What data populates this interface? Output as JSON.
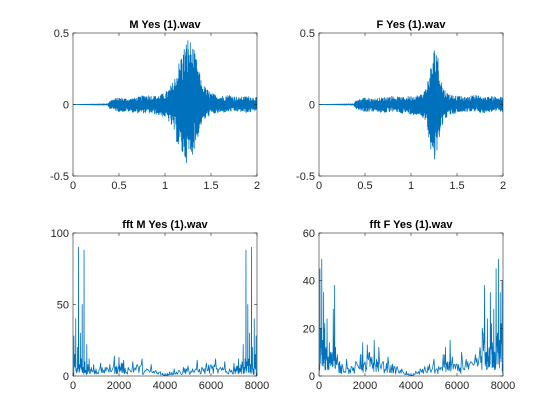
{
  "figure": {
    "background": "#ffffff"
  },
  "chart_data": [
    {
      "type": "line",
      "title": "M Yes (1).wav",
      "xlabel": "",
      "ylabel": "",
      "xlim": [
        0,
        2
      ],
      "ylim": [
        -0.5,
        0.5
      ],
      "xticks": [
        0,
        0.5,
        1,
        1.5,
        2
      ],
      "xtick_labels": [
        "0",
        "0.5",
        "1",
        "1.5",
        "2"
      ],
      "yticks": [
        -0.5,
        0,
        0.5
      ],
      "ytick_labels": [
        "-0.5",
        "0",
        "0.5"
      ],
      "color": "#0072BD",
      "grid": false,
      "envelope": {
        "x": [
          0,
          0.38,
          0.4,
          0.5,
          0.6,
          0.7,
          0.8,
          0.9,
          1.0,
          1.05,
          1.1,
          1.15,
          1.2,
          1.25,
          1.3,
          1.35,
          1.4,
          1.5,
          1.6,
          1.7,
          1.8,
          1.9,
          2.0
        ],
        "upper": [
          0.0,
          0.005,
          0.03,
          0.05,
          0.04,
          0.05,
          0.07,
          0.06,
          0.08,
          0.12,
          0.18,
          0.3,
          0.4,
          0.48,
          0.42,
          0.3,
          0.15,
          0.08,
          0.06,
          0.07,
          0.05,
          0.06,
          0.05
        ],
        "lower": [
          0.0,
          -0.005,
          -0.03,
          -0.05,
          -0.05,
          -0.06,
          -0.06,
          -0.07,
          -0.09,
          -0.13,
          -0.2,
          -0.32,
          -0.38,
          -0.42,
          -0.35,
          -0.25,
          -0.13,
          -0.07,
          -0.06,
          -0.05,
          -0.05,
          -0.06,
          -0.04
        ]
      }
    },
    {
      "type": "line",
      "title": "F Yes (1).wav",
      "xlabel": "",
      "ylabel": "",
      "xlim": [
        0,
        2
      ],
      "ylim": [
        -0.5,
        0.5
      ],
      "xticks": [
        0,
        0.5,
        1,
        1.5,
        2
      ],
      "xtick_labels": [
        "0",
        "0.5",
        "1",
        "1.5",
        "2"
      ],
      "yticks": [
        -0.5,
        0,
        0.5
      ],
      "ytick_labels": [
        "-0.5",
        "0",
        "0.5"
      ],
      "color": "#0072BD",
      "grid": false,
      "envelope": {
        "x": [
          0,
          0.38,
          0.4,
          0.5,
          0.6,
          0.7,
          0.8,
          0.9,
          1.0,
          1.1,
          1.15,
          1.2,
          1.25,
          1.28,
          1.3,
          1.35,
          1.4,
          1.5,
          1.6,
          1.7,
          1.8,
          1.9,
          2.0
        ],
        "upper": [
          0.0,
          0.005,
          0.03,
          0.05,
          0.04,
          0.05,
          0.06,
          0.05,
          0.06,
          0.07,
          0.1,
          0.22,
          0.4,
          0.43,
          0.3,
          0.12,
          0.08,
          0.06,
          0.05,
          0.07,
          0.05,
          0.06,
          0.05
        ],
        "lower": [
          0.0,
          -0.005,
          -0.03,
          -0.05,
          -0.05,
          -0.06,
          -0.05,
          -0.06,
          -0.07,
          -0.08,
          -0.1,
          -0.25,
          -0.45,
          -0.4,
          -0.25,
          -0.12,
          -0.08,
          -0.06,
          -0.05,
          -0.05,
          -0.06,
          -0.05,
          -0.05
        ]
      }
    },
    {
      "type": "line",
      "title": "fft M Yes (1).wav",
      "xlabel": "",
      "ylabel": "",
      "xlim": [
        0,
        8000
      ],
      "ylim": [
        0,
        100
      ],
      "xticks": [
        0,
        2000,
        4000,
        6000,
        8000
      ],
      "xtick_labels": [
        "0",
        "2000",
        "4000",
        "6000",
        "8000"
      ],
      "yticks": [
        0,
        50,
        100
      ],
      "ytick_labels": [
        "0",
        "50",
        "100"
      ],
      "color": "#0072BD",
      "grid": false,
      "x": [
        0,
        40,
        80,
        120,
        160,
        200,
        240,
        280,
        320,
        360,
        400,
        440,
        480,
        520,
        560,
        600,
        650,
        700,
        800,
        900,
        1000,
        1200,
        1400,
        1600,
        1800,
        1900,
        2000,
        2100,
        2200,
        2400,
        2600,
        2800,
        3000,
        3200,
        3400,
        3600,
        3800,
        3900,
        4000,
        4100,
        4200,
        4400,
        4600,
        4800,
        5000,
        5200,
        5400,
        5600,
        5800,
        6000,
        6200,
        6400,
        6600,
        6800,
        7000,
        7100,
        7200,
        7300,
        7350,
        7400,
        7440,
        7480,
        7520,
        7560,
        7600,
        7640,
        7680,
        7720,
        7760,
        7800,
        7840,
        7880,
        7920,
        7960,
        8000
      ],
      "y": [
        2,
        28,
        15,
        40,
        5,
        20,
        90,
        8,
        30,
        12,
        50,
        6,
        88,
        10,
        4,
        22,
        8,
        12,
        6,
        8,
        5,
        9,
        6,
        8,
        14,
        7,
        13,
        9,
        11,
        6,
        10,
        8,
        12,
        5,
        8,
        4,
        3,
        2,
        1,
        2,
        3,
        5,
        4,
        6,
        7,
        5,
        11,
        6,
        9,
        8,
        12,
        6,
        10,
        5,
        9,
        7,
        12,
        8,
        10,
        22,
        6,
        12,
        88,
        10,
        50,
        12,
        30,
        8,
        90,
        20,
        5,
        40,
        15,
        28,
        2
      ]
    },
    {
      "type": "line",
      "title": "fft F Yes (1).wav",
      "xlabel": "",
      "ylabel": "",
      "xlim": [
        0,
        8000
      ],
      "ylim": [
        0,
        60
      ],
      "xticks": [
        0,
        2000,
        4000,
        6000,
        8000
      ],
      "xtick_labels": [
        "0",
        "2000",
        "4000",
        "6000",
        "8000"
      ],
      "yticks": [
        0,
        20,
        40,
        60
      ],
      "ytick_labels": [
        "0",
        "20",
        "40",
        "60"
      ],
      "color": "#0072BD",
      "grid": false,
      "x": [
        0,
        40,
        80,
        120,
        160,
        200,
        250,
        300,
        350,
        400,
        450,
        500,
        560,
        620,
        680,
        720,
        800,
        900,
        1000,
        1200,
        1400,
        1600,
        1800,
        1900,
        2000,
        2100,
        2200,
        2300,
        2400,
        2500,
        2600,
        2800,
        3000,
        3200,
        3400,
        3600,
        3800,
        3900,
        4000,
        4100,
        4200,
        4400,
        4600,
        4800,
        5000,
        5200,
        5400,
        5500,
        5600,
        5700,
        5800,
        6000,
        6200,
        6400,
        6600,
        6800,
        7000,
        7100,
        7200,
        7280,
        7320,
        7400,
        7450,
        7500,
        7550,
        7600,
        7640,
        7700,
        7760,
        7800,
        7840,
        7880,
        7920,
        7960,
        8000
      ],
      "y": [
        5,
        45,
        20,
        49,
        15,
        35,
        22,
        12,
        24,
        8,
        14,
        10,
        10,
        28,
        38,
        12,
        9,
        6,
        5,
        7,
        4,
        6,
        9,
        14,
        6,
        13,
        10,
        8,
        15,
        7,
        12,
        6,
        8,
        5,
        4,
        3,
        2,
        1,
        0.5,
        1,
        2,
        3,
        4,
        5,
        7,
        4,
        9,
        12,
        6,
        15,
        8,
        5,
        10,
        7,
        6,
        9,
        12,
        20,
        38,
        10,
        24,
        12,
        35,
        22,
        14,
        28,
        10,
        45,
        18,
        49,
        15,
        35,
        22,
        40,
        5
      ]
    }
  ]
}
